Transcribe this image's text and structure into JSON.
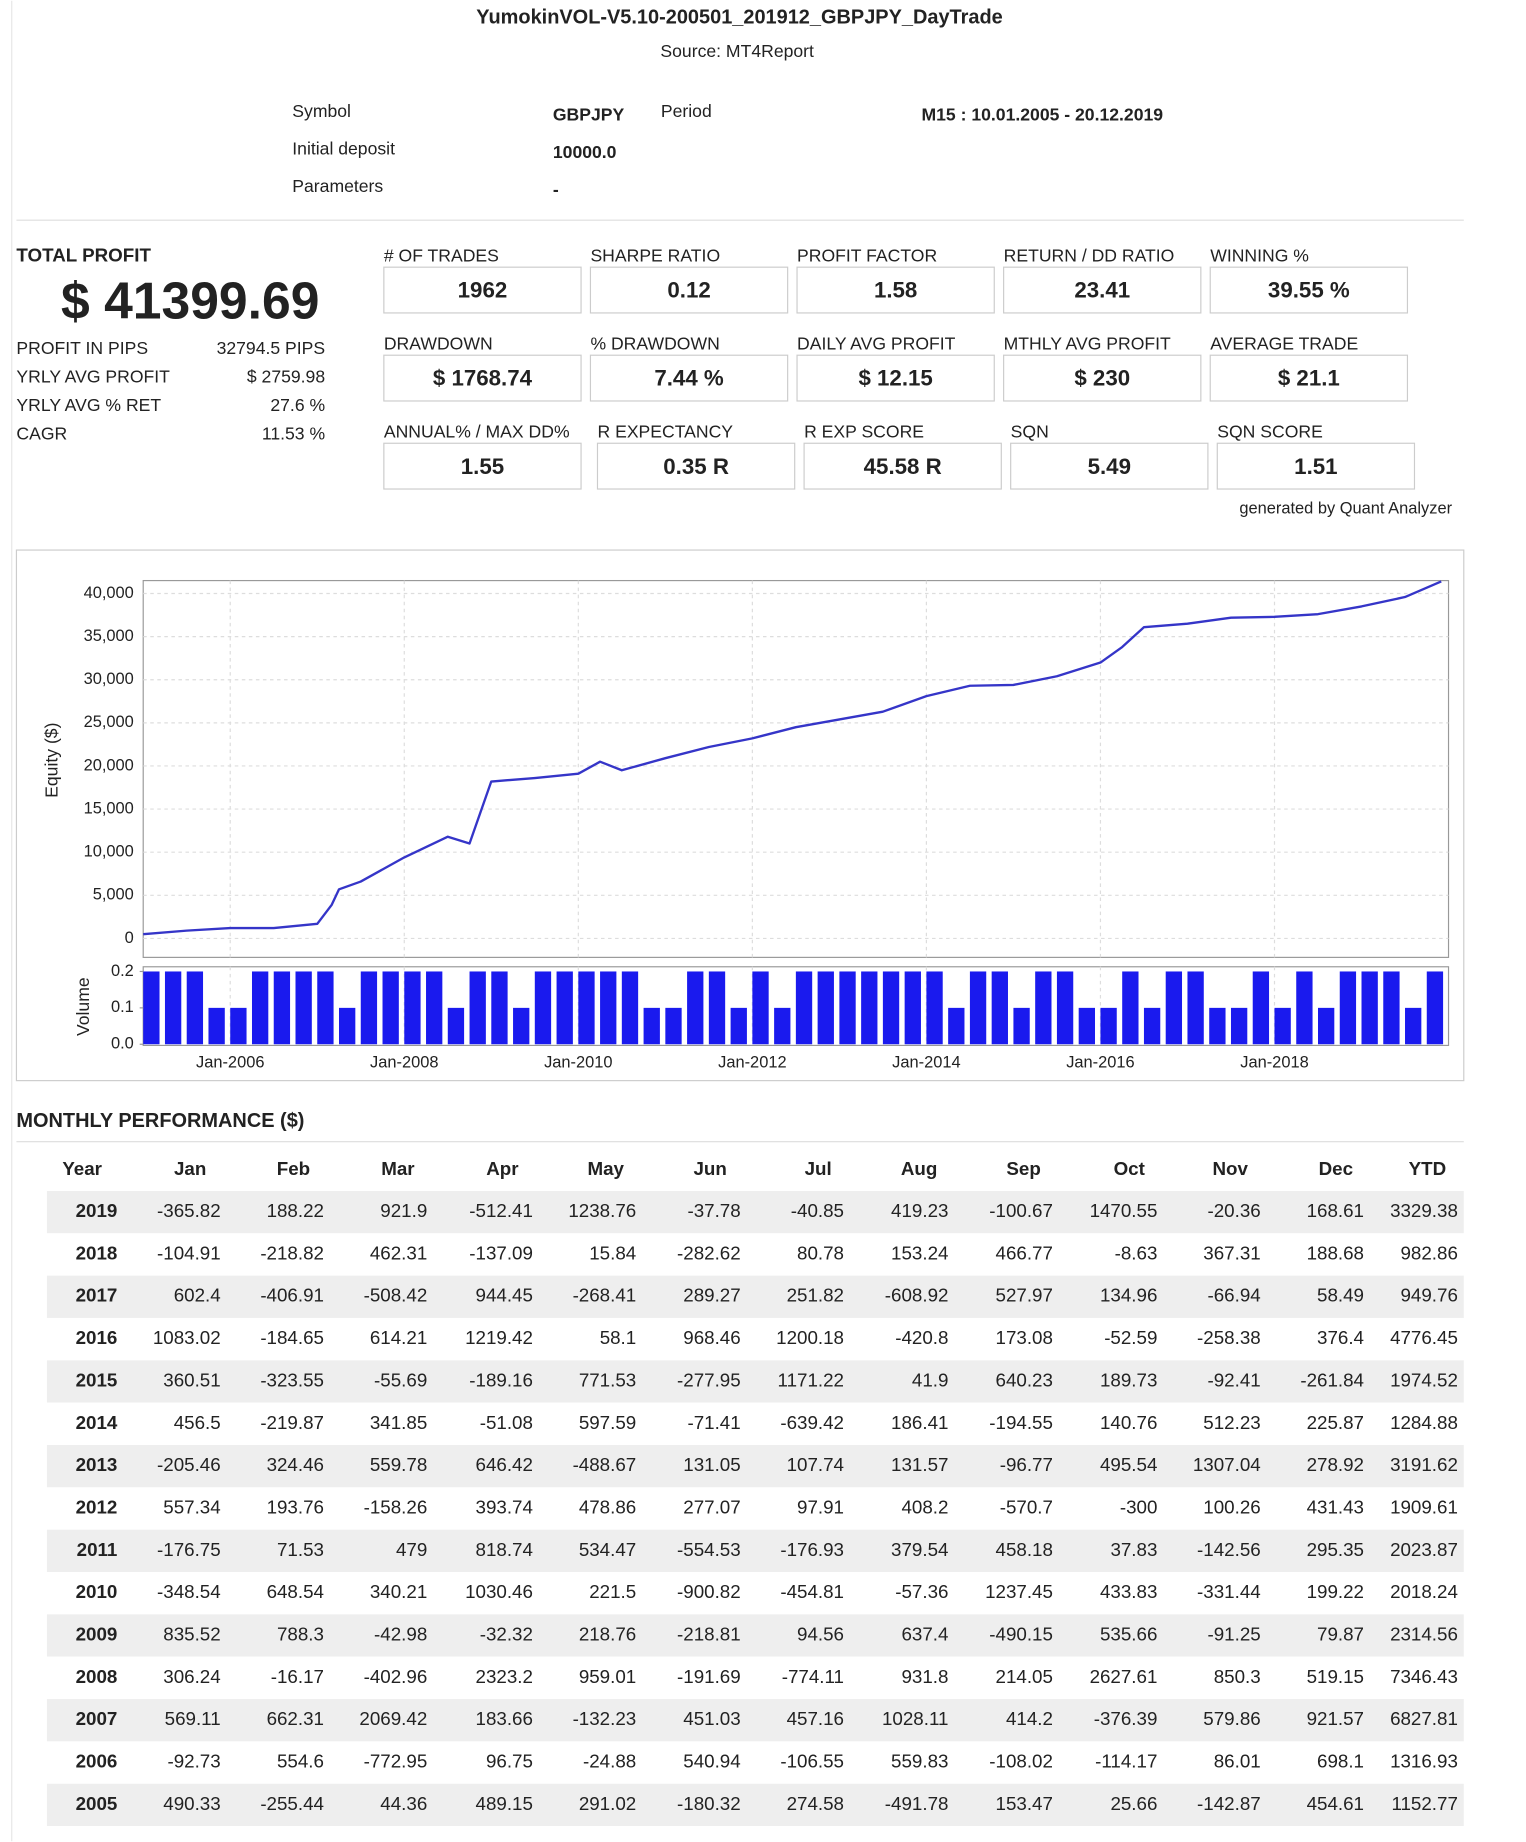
{
  "header": {
    "title": "YumokinVOL-V5.10-200501_201912_GBPJPY_DayTrade",
    "source": "Source: MT4Report"
  },
  "info": {
    "symbol_label": "Symbol",
    "symbol": "GBPJPY",
    "period_label": "Period",
    "period": "M15 : 10.01.2005 - 20.12.2019",
    "deposit_label": "Initial deposit",
    "deposit": "10000.0",
    "parameters_label": "Parameters",
    "parameters": "-"
  },
  "summary": {
    "total_label": "TOTAL PROFIT",
    "total": "$ 41399.69",
    "stats": [
      {
        "label": "PROFIT IN PIPS",
        "value": "32794.5 PIPS"
      },
      {
        "label": "YRLY AVG PROFIT",
        "value": "$ 2759.98"
      },
      {
        "label": "YRLY AVG % RET",
        "value": "27.6 %"
      },
      {
        "label": "CAGR",
        "value": "11.53 %"
      }
    ]
  },
  "metrics": [
    [
      {
        "label": "# OF TRADES",
        "value": "1962"
      },
      {
        "label": "SHARPE RATIO",
        "value": "0.12"
      },
      {
        "label": "PROFIT FACTOR",
        "value": "1.58"
      },
      {
        "label": "RETURN / DD RATIO",
        "value": "23.41"
      },
      {
        "label": "WINNING %",
        "value": "39.55 %"
      }
    ],
    [
      {
        "label": "DRAWDOWN",
        "value": "$ 1768.74"
      },
      {
        "label": "% DRAWDOWN",
        "value": "7.44 %"
      },
      {
        "label": "DAILY AVG PROFIT",
        "value": "$ 12.15"
      },
      {
        "label": "MTHLY AVG PROFIT",
        "value": "$ 230"
      },
      {
        "label": "AVERAGE TRADE",
        "value": "$ 21.1"
      }
    ],
    [
      {
        "label": "ANNUAL% / MAX DD%",
        "value": "1.55"
      },
      {
        "label": "R EXPECTANCY",
        "value": "0.35 R"
      },
      {
        "label": "R EXP SCORE",
        "value": "45.58 R"
      },
      {
        "label": "SQN",
        "value": "5.49"
      },
      {
        "label": "SQN SCORE",
        "value": "1.51"
      }
    ]
  ],
  "generated_by": "generated by Quant Analyzer",
  "chart_data": {
    "type": "line",
    "ylabel": "Equity ($)",
    "color": "#3535c8",
    "grid": true,
    "xlim": [
      "Jan-2005",
      "Jan-2020"
    ],
    "xticks": [
      "Jan-2006",
      "Jan-2008",
      "Jan-2010",
      "Jan-2012",
      "Jan-2014",
      "Jan-2016",
      "Jan-2018"
    ],
    "ylim": [
      -2200,
      41500
    ],
    "yticks": [
      0,
      {
        "value": 5000,
        "label": "5,000"
      },
      {
        "value": 10000,
        "label": "10,000"
      },
      {
        "value": 15000,
        "label": "15,000"
      },
      {
        "value": 20000,
        "label": "20,000"
      },
      {
        "value": 25000,
        "label": "25,000"
      },
      {
        "value": 30000,
        "label": "30,000"
      },
      {
        "value": 35000,
        "label": "35,000"
      },
      {
        "value": 40000,
        "label": "40,000"
      }
    ],
    "x": [
      "Jan-2005",
      "Jul-2005",
      "Jan-2006",
      "Jul-2006",
      "Jan-2007",
      "Mar-2007",
      "Apr-2007",
      "Jul-2007",
      "Jan-2008",
      "Jul-2008",
      "Oct-2008",
      "Jan-2009",
      "Jul-2009",
      "Jan-2010",
      "Apr-2010",
      "Jul-2010",
      "Jan-2011",
      "Jul-2011",
      "Jan-2012",
      "Jul-2012",
      "Jan-2013",
      "Jul-2013",
      "Jan-2014",
      "Jul-2014",
      "Jan-2015",
      "Jul-2015",
      "Jan-2016",
      "Apr-2016",
      "Jul-2016",
      "Jan-2017",
      "Jul-2017",
      "Jan-2018",
      "Jul-2018",
      "Jan-2019",
      "Jul-2019",
      "Dec-2019"
    ],
    "values": [
      500,
      900,
      1200,
      1200,
      1700,
      3900,
      5700,
      6600,
      9400,
      11800,
      11000,
      18200,
      18600,
      19100,
      20500,
      19500,
      20900,
      22200,
      23200,
      24500,
      25400,
      26300,
      28100,
      29300,
      29400,
      30400,
      32000,
      33800,
      36100,
      36500,
      37200,
      37300,
      37600,
      38500,
      39600,
      41400
    ],
    "volume": {
      "ylabel": "Volume",
      "color": "#1a1aee",
      "ylim": [
        0,
        0.2
      ],
      "yticks": [
        {
          "value": 0,
          "label": "0.0"
        },
        {
          "value": 0.1,
          "label": "0.1"
        },
        {
          "value": 0.2,
          "label": "0.2"
        }
      ],
      "x": [
        "Jan-2005",
        "Apr-2005",
        "Jul-2005",
        "Oct-2005",
        "Jan-2006",
        "Apr-2006",
        "Jul-2006",
        "Oct-2006",
        "Jan-2007",
        "Apr-2007",
        "Jul-2007",
        "Oct-2007",
        "Jan-2008",
        "Apr-2008",
        "Jul-2008",
        "Oct-2008",
        "Jan-2009",
        "Apr-2009",
        "Jul-2009",
        "Oct-2009",
        "Jan-2010",
        "Apr-2010",
        "Jul-2010",
        "Oct-2010",
        "Jan-2011",
        "Apr-2011",
        "Jul-2011",
        "Oct-2011",
        "Jan-2012",
        "Apr-2012",
        "Jul-2012",
        "Oct-2012",
        "Jan-2013",
        "Apr-2013",
        "Jul-2013",
        "Oct-2013",
        "Jan-2014",
        "Apr-2014",
        "Jul-2014",
        "Oct-2014",
        "Jan-2015",
        "Apr-2015",
        "Jul-2015",
        "Oct-2015",
        "Jan-2016",
        "Apr-2016",
        "Jul-2016",
        "Oct-2016",
        "Jan-2017",
        "Apr-2017",
        "Jul-2017",
        "Oct-2017",
        "Jan-2018",
        "Apr-2018",
        "Jul-2018",
        "Oct-2018",
        "Jan-2019",
        "Apr-2019",
        "Jul-2019",
        "Oct-2019"
      ],
      "values": [
        0.2,
        0.2,
        0.2,
        0.1,
        0.1,
        0.2,
        0.2,
        0.2,
        0.2,
        0.1,
        0.2,
        0.2,
        0.2,
        0.2,
        0.1,
        0.2,
        0.2,
        0.1,
        0.2,
        0.2,
        0.2,
        0.2,
        0.2,
        0.1,
        0.1,
        0.2,
        0.2,
        0.1,
        0.2,
        0.1,
        0.2,
        0.2,
        0.2,
        0.2,
        0.2,
        0.2,
        0.2,
        0.1,
        0.2,
        0.2,
        0.1,
        0.2,
        0.2,
        0.1,
        0.1,
        0.2,
        0.1,
        0.2,
        0.2,
        0.1,
        0.1,
        0.2,
        0.1,
        0.2,
        0.1,
        0.2,
        0.2,
        0.2,
        0.1,
        0.2
      ]
    }
  },
  "monthly": {
    "title": "MONTHLY PERFORMANCE ($)",
    "columns": [
      "Year",
      "Jan",
      "Feb",
      "Mar",
      "Apr",
      "May",
      "Jun",
      "Jul",
      "Aug",
      "Sep",
      "Oct",
      "Nov",
      "Dec",
      "YTD"
    ],
    "rows": [
      [
        2019,
        -365.82,
        188.22,
        921.9,
        -512.41,
        1238.76,
        -37.78,
        -40.85,
        419.23,
        -100.67,
        1470.55,
        -20.36,
        168.61,
        3329.38
      ],
      [
        2018,
        -104.91,
        -218.82,
        462.31,
        -137.09,
        15.84,
        -282.62,
        80.78,
        153.24,
        466.77,
        -8.63,
        367.31,
        188.68,
        982.86
      ],
      [
        2017,
        602.4,
        -406.91,
        -508.42,
        944.45,
        -268.41,
        289.27,
        251.82,
        -608.92,
        527.97,
        134.96,
        -66.94,
        58.49,
        949.76
      ],
      [
        2016,
        1083.02,
        -184.65,
        614.21,
        1219.42,
        58.1,
        968.46,
        1200.18,
        -420.8,
        173.08,
        -52.59,
        -258.38,
        376.4,
        4776.45
      ],
      [
        2015,
        360.51,
        -323.55,
        -55.69,
        -189.16,
        771.53,
        -277.95,
        1171.22,
        41.9,
        640.23,
        189.73,
        -92.41,
        -261.84,
        1974.52
      ],
      [
        2014,
        456.5,
        -219.87,
        341.85,
        -51.08,
        597.59,
        -71.41,
        -639.42,
        186.41,
        -194.55,
        140.76,
        512.23,
        225.87,
        1284.88
      ],
      [
        2013,
        -205.46,
        324.46,
        559.78,
        646.42,
        -488.67,
        131.05,
        107.74,
        131.57,
        -96.77,
        495.54,
        1307.04,
        278.92,
        3191.62
      ],
      [
        2012,
        557.34,
        193.76,
        -158.26,
        393.74,
        478.86,
        277.07,
        97.91,
        408.2,
        -570.7,
        -300,
        100.26,
        431.43,
        1909.61
      ],
      [
        2011,
        -176.75,
        71.53,
        479,
        818.74,
        534.47,
        -554.53,
        -176.93,
        379.54,
        458.18,
        37.83,
        -142.56,
        295.35,
        2023.87
      ],
      [
        2010,
        -348.54,
        648.54,
        340.21,
        1030.46,
        221.5,
        -900.82,
        -454.81,
        -57.36,
        1237.45,
        433.83,
        -331.44,
        199.22,
        2018.24
      ],
      [
        2009,
        835.52,
        788.3,
        -42.98,
        -32.32,
        218.76,
        -218.81,
        94.56,
        637.4,
        -490.15,
        535.66,
        -91.25,
        79.87,
        2314.56
      ],
      [
        2008,
        306.24,
        -16.17,
        -402.96,
        2323.2,
        959.01,
        -191.69,
        -774.11,
        931.8,
        214.05,
        2627.61,
        850.3,
        519.15,
        7346.43
      ],
      [
        2007,
        569.11,
        662.31,
        2069.42,
        183.66,
        -132.23,
        451.03,
        457.16,
        1028.11,
        414.2,
        -376.39,
        579.86,
        921.57,
        6827.81
      ],
      [
        2006,
        -92.73,
        554.6,
        -772.95,
        96.75,
        -24.88,
        540.94,
        -106.55,
        559.83,
        -108.02,
        -114.17,
        86.01,
        698.1,
        1316.93
      ],
      [
        2005,
        490.33,
        -255.44,
        44.36,
        489.15,
        291.02,
        -180.32,
        274.58,
        -491.78,
        153.47,
        25.66,
        -142.87,
        454.61,
        1152.77
      ]
    ]
  }
}
